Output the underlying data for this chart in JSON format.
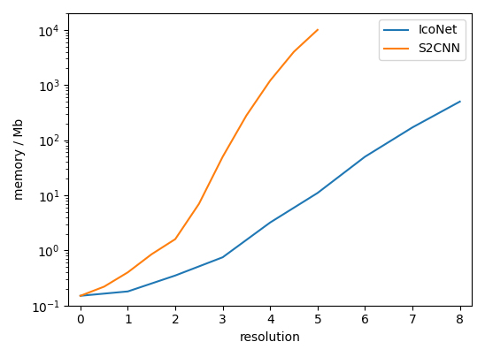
{
  "title": "",
  "xlabel": "resolution",
  "ylabel": "memory / Mb",
  "icoNet_x": [
    0,
    1,
    2,
    3,
    4,
    5,
    6,
    7,
    8
  ],
  "icoNet_y": [
    0.15,
    0.18,
    0.35,
    0.75,
    3.2,
    11.0,
    50.0,
    170.0,
    500.0
  ],
  "s2cnn_x": [
    0,
    0.5,
    1,
    1.5,
    2,
    2.5,
    3,
    3.5,
    4,
    4.5,
    5
  ],
  "s2cnn_y": [
    0.15,
    0.22,
    0.4,
    0.85,
    1.6,
    7.0,
    50.0,
    280.0,
    1200.0,
    4000.0,
    10000.0
  ],
  "icoNet_color": "#1f77b4",
  "s2cnn_color": "#ff7f0e",
  "xlim": [
    -0.25,
    8.25
  ],
  "ylim": [
    0.1,
    20000.0
  ],
  "xticks": [
    0,
    1,
    2,
    3,
    4,
    5,
    6,
    7,
    8
  ],
  "legend_labels": [
    "IcoNet",
    "S2CNN"
  ],
  "legend_loc": "upper right",
  "linewidth": 1.5,
  "figsize": [
    5.48,
    4.04
  ],
  "dpi": 100
}
